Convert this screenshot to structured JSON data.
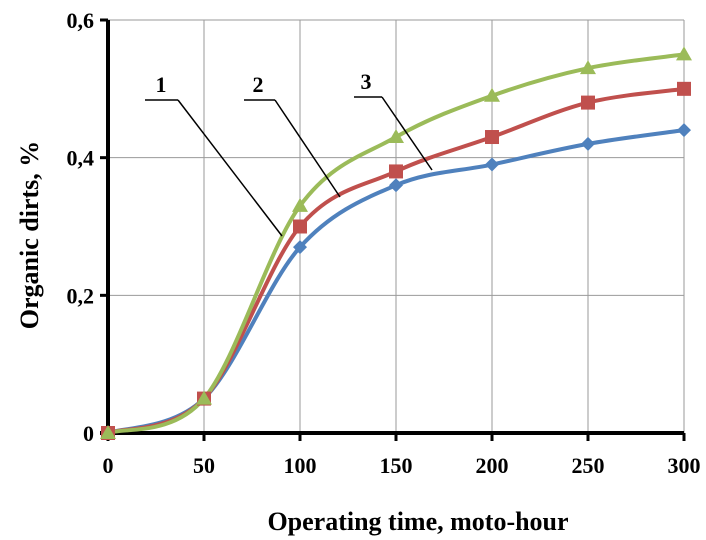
{
  "chart_data": {
    "type": "line",
    "xlabel": "Operating time, moto-hour",
    "ylabel": "Organic dirts, %",
    "x": [
      0,
      50,
      100,
      150,
      200,
      250,
      300
    ],
    "x_ticks": [
      "0",
      "50",
      "100",
      "150",
      "200",
      "250",
      "300"
    ],
    "y_ticks": [
      "0",
      "0,2",
      "0,4",
      "0,6"
    ],
    "xlim": [
      0,
      300
    ],
    "ylim": [
      0,
      0.6
    ],
    "grid": true,
    "legend": "none",
    "series": [
      {
        "name": "1",
        "values": [
          0.0,
          0.05,
          0.27,
          0.36,
          0.39,
          0.42,
          0.44
        ],
        "marker": "diamond",
        "color": "#4f81bd"
      },
      {
        "name": "2",
        "values": [
          0.0,
          0.05,
          0.3,
          0.38,
          0.43,
          0.48,
          0.5
        ],
        "marker": "square",
        "color": "#c0504d"
      },
      {
        "name": "3",
        "values": [
          0.0,
          0.05,
          0.33,
          0.43,
          0.49,
          0.53,
          0.55
        ],
        "marker": "triangle",
        "color": "#9bbb59"
      }
    ]
  }
}
